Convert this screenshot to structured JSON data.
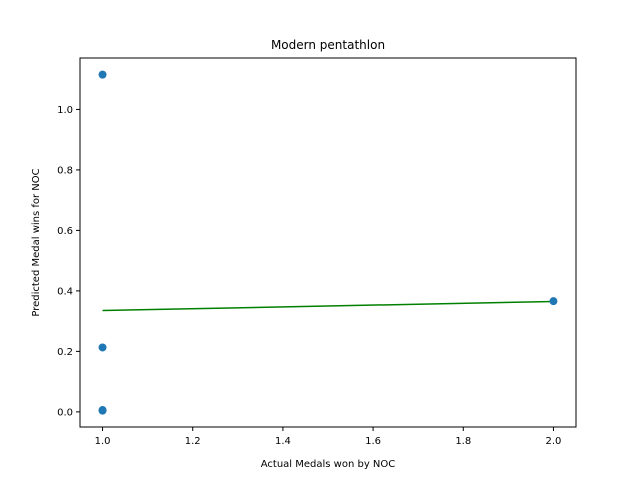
{
  "chart_data": {
    "type": "scatter",
    "title": "Modern pentathlon",
    "xlabel": "Actual Medals won by NOC",
    "ylabel": "Predicted Medal wins for NOC",
    "xlim": [
      0.95,
      2.05
    ],
    "ylim": [
      -0.05,
      1.17
    ],
    "xticks": [
      1.0,
      1.2,
      1.4,
      1.6,
      1.8,
      2.0
    ],
    "xtick_labels": [
      "1.0",
      "1.2",
      "1.4",
      "1.6",
      "1.8",
      "2.0"
    ],
    "yticks": [
      0.0,
      0.2,
      0.4,
      0.6,
      0.8,
      1.0
    ],
    "ytick_labels": [
      "0.0",
      "0.2",
      "0.4",
      "0.6",
      "0.8",
      "1.0"
    ],
    "grid": false,
    "series": [
      {
        "kind": "scatter",
        "color": "#1f77b4",
        "points": [
          {
            "x": 1.0,
            "y": 1.115
          },
          {
            "x": 1.0,
            "y": 0.213
          },
          {
            "x": 1.0,
            "y": 0.006
          },
          {
            "x": 1.0,
            "y": 0.004
          },
          {
            "x": 2.0,
            "y": 0.366
          }
        ]
      },
      {
        "kind": "line",
        "color": "#008000",
        "points": [
          {
            "x": 1.0,
            "y": 0.335
          },
          {
            "x": 2.0,
            "y": 0.365
          }
        ]
      }
    ]
  }
}
